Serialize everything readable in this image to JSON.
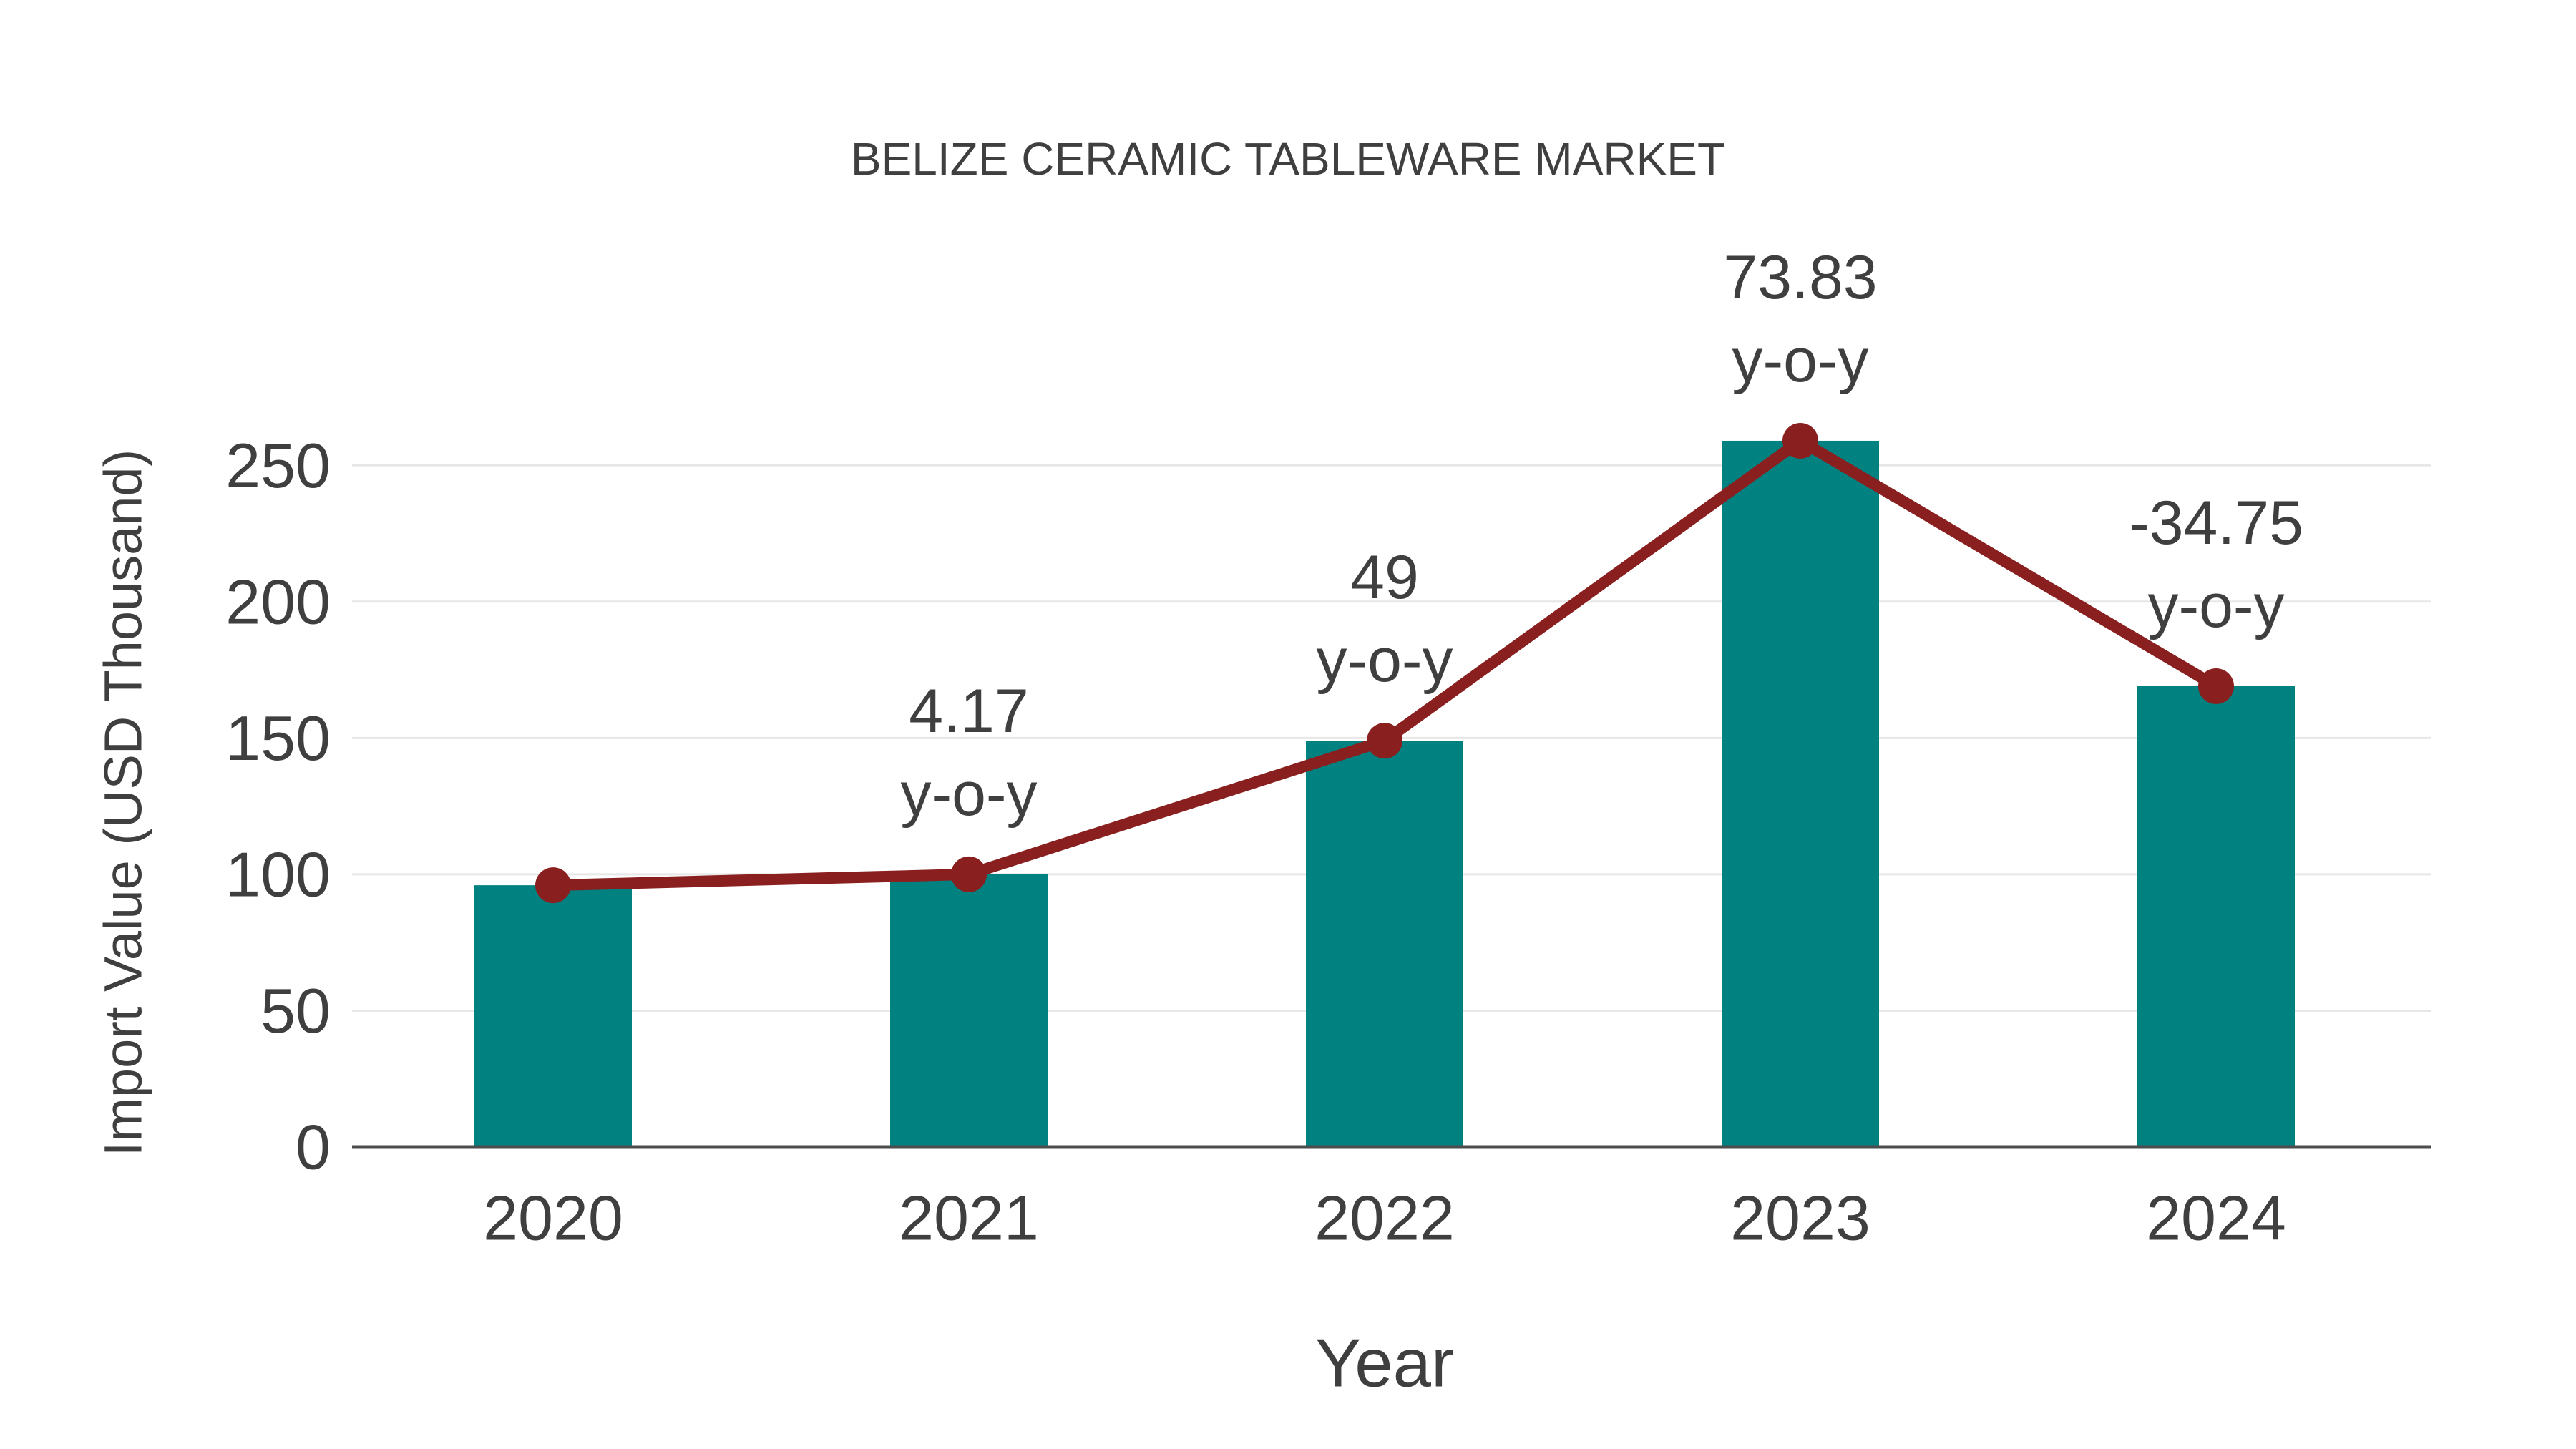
{
  "title": "BELIZE CERAMIC TABLEWARE MARKET",
  "chart_data": {
    "type": "bar",
    "overlay": "line",
    "title": "BELIZE CERAMIC TABLEWARE MARKET",
    "xlabel": "Year",
    "ylabel": "Import Value (USD Thousand)",
    "categories": [
      "2020",
      "2021",
      "2022",
      "2023",
      "2024"
    ],
    "values": [
      96,
      100,
      149,
      259,
      169
    ],
    "line_values": [
      96,
      100,
      149,
      259,
      169
    ],
    "yoy_annotations": [
      null,
      "4.17",
      "49",
      "73.83",
      "-34.75"
    ],
    "annotation_second_line": "y-o-y",
    "yticks": [
      0,
      50,
      100,
      150,
      200,
      250
    ],
    "ylim": [
      0,
      275
    ],
    "grid": true,
    "legend": false,
    "colors": {
      "bar": "#028181",
      "line": "#8a1f1f",
      "marker": "#8a1f1f",
      "text": "#3f3f3f",
      "grid": "#e7e7e7",
      "axis": "#4d4d4d",
      "background": "#ffffff"
    }
  }
}
